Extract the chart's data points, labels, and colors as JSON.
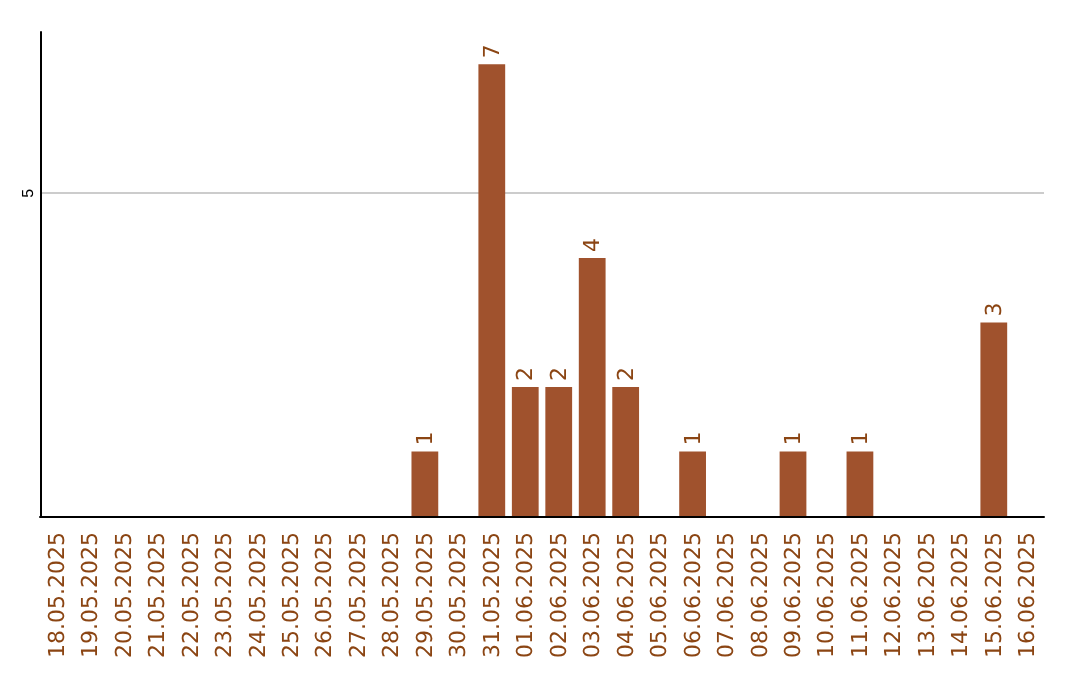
{
  "chart_data": {
    "type": "bar",
    "categories": [
      "18.05.2025",
      "19.05.2025",
      "20.05.2025",
      "21.05.2025",
      "22.05.2025",
      "23.05.2025",
      "24.05.2025",
      "25.05.2025",
      "26.05.2025",
      "27.05.2025",
      "28.05.2025",
      "29.05.2025",
      "30.05.2025",
      "31.05.2025",
      "01.06.2025",
      "02.06.2025",
      "03.06.2025",
      "04.06.2025",
      "05.06.2025",
      "06.06.2025",
      "07.06.2025",
      "08.06.2025",
      "09.06.2025",
      "10.06.2025",
      "11.06.2025",
      "12.06.2025",
      "13.06.2025",
      "14.06.2025",
      "15.06.2025",
      "16.06.2025"
    ],
    "values": [
      0,
      0,
      0,
      0,
      0,
      0,
      0,
      0,
      0,
      0,
      0,
      1,
      0,
      7,
      2,
      2,
      4,
      2,
      0,
      1,
      0,
      0,
      1,
      0,
      1,
      0,
      0,
      0,
      3,
      0
    ],
    "value_labels": [
      null,
      null,
      null,
      null,
      null,
      null,
      null,
      null,
      null,
      null,
      null,
      "1",
      null,
      "7",
      "2",
      "2",
      "4",
      "2",
      null,
      "1",
      null,
      null,
      "1",
      null,
      "1",
      null,
      null,
      null,
      "3",
      null
    ],
    "color": "#a0522d",
    "ylim": [
      0,
      7.5
    ],
    "yticks": [
      5
    ],
    "grid": "y"
  }
}
